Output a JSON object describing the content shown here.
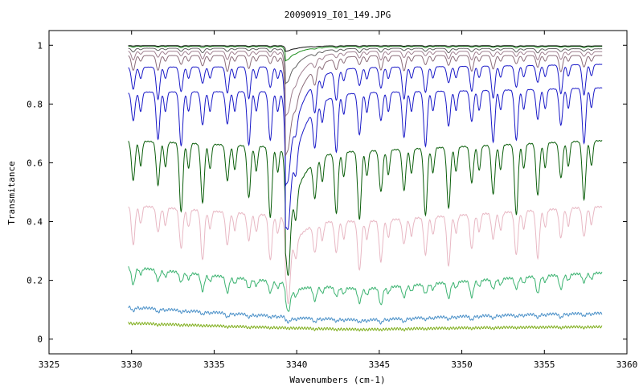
{
  "chart_data": {
    "type": "line",
    "title": "20090919_I01_149.JPG",
    "xlabel": "Wavenumbers (cm-1)",
    "ylabel": "Transmitance",
    "xlim": [
      3325,
      3360
    ],
    "ylim": [
      -0.05,
      1.05
    ],
    "x_ticks": [
      3325,
      3330,
      3335,
      3340,
      3345,
      3350,
      3355,
      3360
    ],
    "y_ticks": [
      0,
      0.2,
      0.4,
      0.6,
      0.8,
      1
    ],
    "x_range": [
      3329.8,
      3358.5
    ],
    "grid": false,
    "legend": "none",
    "line_positions": [
      3330.1,
      3331.6,
      3333.0,
      3334.3,
      3335.8,
      3337.1,
      3338.4,
      3339.5,
      3341.1,
      3342.4,
      3343.8,
      3345.1,
      3346.5,
      3347.8,
      3349.2,
      3350.6,
      3351.9,
      3353.3,
      3354.6,
      3356.0,
      3357.4
    ],
    "strong_feature": {
      "x": 3339.3,
      "width": 0.08
    },
    "series": [
      {
        "color": "#7fae1c",
        "edge_left": 0.055,
        "edge_right": 0.042,
        "baseline": 0.033,
        "depth": 0.004,
        "strong": 0.0
      },
      {
        "color": "#4a90c8",
        "edge_left": 0.11,
        "edge_right": 0.088,
        "baseline": 0.065,
        "depth": 0.014,
        "strong": 0.01
      },
      {
        "color": "#3cb371",
        "edge_left": 0.245,
        "edge_right": 0.225,
        "baseline": 0.17,
        "depth": 0.06,
        "strong": 0.05
      },
      {
        "color": "#e8b8c4",
        "edge_left": 0.455,
        "edge_right": 0.45,
        "baseline": 0.4,
        "depth": 0.17,
        "strong": 0.17
      },
      {
        "color": "#0a5e0a",
        "edge_left": 0.675,
        "edge_right": 0.675,
        "baseline": 0.64,
        "depth": 0.24,
        "strong": 0.33
      },
      {
        "color": "#1a1ac8",
        "edge_left": 0.84,
        "edge_right": 0.855,
        "baseline": 0.84,
        "depth": 0.19,
        "strong": 0.45
      },
      {
        "color": "#1a1ac8",
        "edge_left": 0.925,
        "edge_right": 0.935,
        "baseline": 0.925,
        "depth": 0.11,
        "strong": 0.4
      },
      {
        "color": "#8c6d7a",
        "edge_left": 0.965,
        "edge_right": 0.965,
        "baseline": 0.965,
        "depth": 0.055,
        "strong": 0.34
      },
      {
        "color": "#a08090",
        "edge_left": 0.98,
        "edge_right": 0.978,
        "baseline": 0.98,
        "depth": 0.03,
        "strong": 0.22
      },
      {
        "color": "#606060",
        "edge_left": 0.99,
        "edge_right": 0.988,
        "baseline": 0.99,
        "depth": 0.015,
        "strong": 0.12
      },
      {
        "color": "#1a8c1a",
        "edge_left": 0.997,
        "edge_right": 0.996,
        "baseline": 0.997,
        "depth": 0.006,
        "strong": 0.05
      },
      {
        "color": "#111111",
        "edge_left": 0.999,
        "edge_right": 0.998,
        "baseline": 0.999,
        "depth": 0.003,
        "strong": 0.02
      }
    ]
  }
}
